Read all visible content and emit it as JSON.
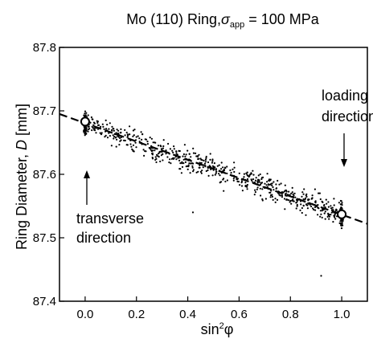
{
  "chart_data": {
    "type": "scatter",
    "title": {
      "prefix": "Mo (110) Ring,",
      "sigma": "σ",
      "sigma_sub": "app",
      "suffix": " = 100 MPa"
    },
    "xlabel": {
      "main": "sin",
      "sup": "2",
      "symbol": "φ"
    },
    "ylabel": {
      "main": "Ring Diameter, ",
      "symbol": "D",
      "unit": " [mm]"
    },
    "xlim": [
      -0.1,
      1.1
    ],
    "ylim": [
      87.4,
      87.8
    ],
    "x_ticks": [
      "0.0",
      "0.2",
      "0.4",
      "0.6",
      "0.8",
      "1.0"
    ],
    "x_tick_values": [
      0.0,
      0.2,
      0.4,
      0.6,
      0.8,
      1.0
    ],
    "y_ticks": [
      "87.4",
      "87.5",
      "87.6",
      "87.7",
      "87.8"
    ],
    "y_tick_values": [
      87.4,
      87.5,
      87.6,
      87.7,
      87.8
    ],
    "grid": false,
    "fit_line": {
      "style": "dashed",
      "x": [
        -0.1,
        1.1
      ],
      "y": [
        87.695,
        87.522
      ]
    },
    "highlight_points": [
      {
        "x": 0.0,
        "y": 87.683
      },
      {
        "x": 1.0,
        "y": 87.537
      }
    ],
    "scatter_summary": {
      "x_range": [
        0.0,
        1.0
      ],
      "trend": "decreasing",
      "spread_mm": 0.04,
      "dense_clusters_at_x": [
        0.0,
        1.0
      ]
    },
    "outliers": [
      {
        "x": 0.92,
        "y": 87.44
      },
      {
        "x": 0.42,
        "y": 87.54
      }
    ],
    "annotations": [
      {
        "text_lines": [
          "transverse",
          "direction"
        ],
        "points_to_x": 0.0
      },
      {
        "text_lines": [
          "loading",
          "direction"
        ],
        "points_to_x": 1.0
      }
    ]
  }
}
